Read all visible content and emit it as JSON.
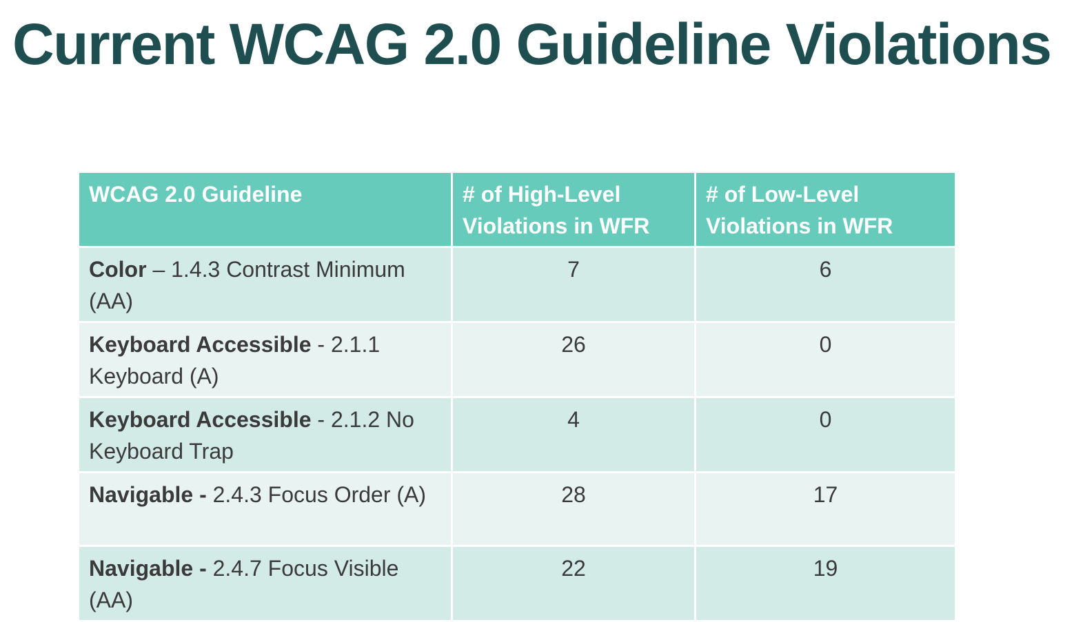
{
  "title": "Current WCAG 2.0 Guideline Violations",
  "colors": {
    "title": "#1f4e50",
    "header_bg": "#66cbbb",
    "row_dark": "#d3ebe7",
    "row_light": "#e9f4f2",
    "body_text": "#3a3a3a"
  },
  "table": {
    "headers": [
      "WCAG 2.0 Guideline",
      "# of High-Level Violations in WFR",
      "# of Low-Level Violations in WFR"
    ],
    "rows": [
      {
        "name": "Color",
        "detail": " – 1.4.3 Contrast Minimum (AA)",
        "high": "7",
        "low": "6"
      },
      {
        "name": "Keyboard Accessible",
        "detail": " - 2.1.1 Keyboard (A)",
        "high": "26",
        "low": "0"
      },
      {
        "name": "Keyboard Accessible",
        "detail": " - 2.1.2 No Keyboard Trap",
        "high": "4",
        "low": "0"
      },
      {
        "name": "Navigable -",
        "detail": " 2.4.3 Focus Order (A)",
        "high": "28",
        "low": "17"
      },
      {
        "name": "Navigable -",
        "detail": " 2.4.7 Focus Visible (AA)",
        "high": "22",
        "low": "19"
      }
    ]
  }
}
